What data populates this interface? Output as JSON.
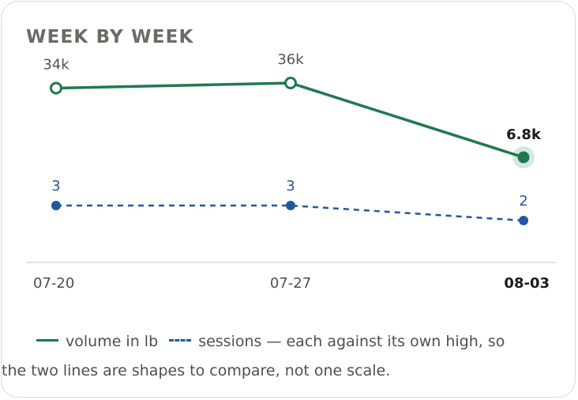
{
  "title": "WEEK BY WEEK",
  "colors": {
    "volume": "#1f7a4d",
    "sessions": "#2457a0",
    "axis_text": "#4f4f4b",
    "highlight_text": "#1b1b1b"
  },
  "legend": {
    "volume_label": "volume in lb",
    "sessions_label": "sessions — each against its own high, so",
    "note": "the two lines are shapes to compare, not one scale."
  },
  "chart_data": {
    "type": "line",
    "categories": [
      "07-20",
      "07-27",
      "08-03"
    ],
    "highlight_index": 2,
    "series": [
      {
        "name": "volume in lb",
        "values": [
          34000,
          36000,
          6800
        ],
        "labels": [
          "34k",
          "36k",
          "6.8k"
        ],
        "style": "solid"
      },
      {
        "name": "sessions",
        "values": [
          3,
          3,
          2
        ],
        "labels": [
          "3",
          "3",
          "2"
        ],
        "style": "dashed"
      }
    ],
    "scale_note": "each series scaled against its own high",
    "grid": false
  }
}
